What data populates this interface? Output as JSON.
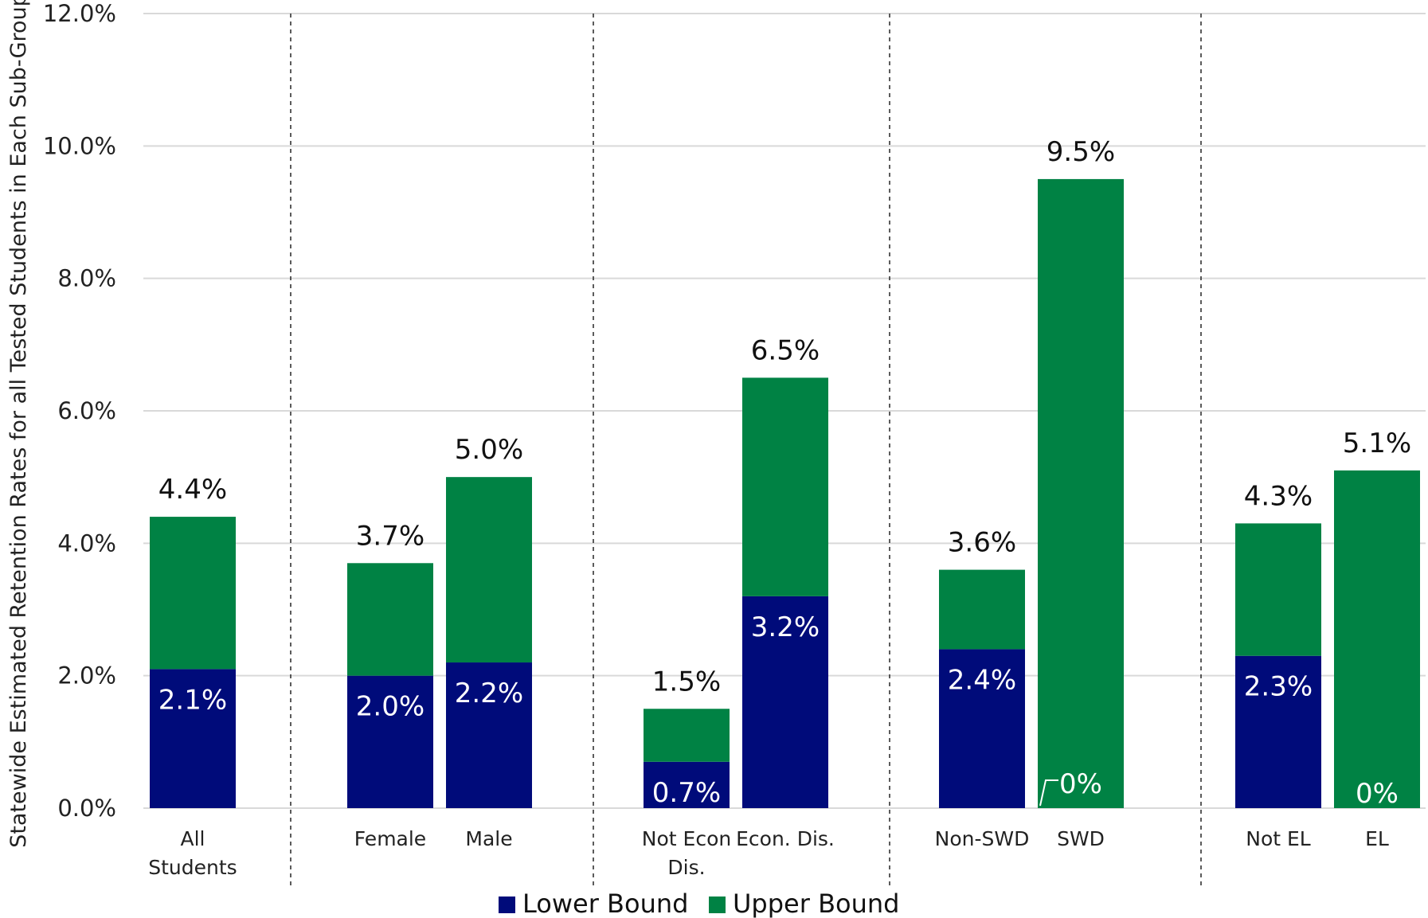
{
  "chart_data": {
    "type": "bar",
    "stacked": true,
    "title": "",
    "xlabel": "",
    "ylabel": "Statewide Estimated Retention Rates for all Tested Students in Each Sub-Group",
    "ylim": [
      0,
      12
    ],
    "yticks": [
      "0.0%",
      "2.0%",
      "4.0%",
      "6.0%",
      "8.0%",
      "10.0%",
      "12.0%"
    ],
    "grid": true,
    "legend_position": "bottom",
    "groups": [
      [
        0
      ],
      [
        1,
        2
      ],
      [
        3,
        4
      ],
      [
        5,
        6
      ],
      [
        7,
        8
      ]
    ],
    "categories": [
      {
        "lines": [
          "All",
          "Students"
        ]
      },
      {
        "lines": [
          "Female"
        ]
      },
      {
        "lines": [
          "Male"
        ]
      },
      {
        "lines": [
          "Not Econ",
          "Dis."
        ]
      },
      {
        "lines": [
          "Econ. Dis."
        ]
      },
      {
        "lines": [
          "Non-SWD"
        ]
      },
      {
        "lines": [
          "SWD"
        ]
      },
      {
        "lines": [
          "Not EL"
        ]
      },
      {
        "lines": [
          "EL"
        ]
      }
    ],
    "series": [
      {
        "name": "Lower Bound",
        "color": "#000B7A",
        "values": [
          2.1,
          2.0,
          2.2,
          0.7,
          3.2,
          2.4,
          0,
          2.3,
          0
        ],
        "labels": [
          "2.1%",
          "2.0%",
          "2.2%",
          "0.7%",
          "3.2%",
          "2.4%",
          "0%",
          "2.3%",
          "0%"
        ]
      },
      {
        "name": "Upper Bound",
        "color": "#008244",
        "values": [
          2.3,
          1.7,
          2.8,
          0.8,
          3.3,
          1.2,
          9.5,
          2.0,
          5.1
        ]
      }
    ],
    "totals": [
      4.4,
      3.7,
      5.0,
      1.5,
      6.5,
      3.6,
      9.5,
      4.3,
      5.1
    ],
    "total_labels": [
      "4.4%",
      "3.7%",
      "5.0%",
      "1.5%",
      "6.5%",
      "3.6%",
      "9.5%",
      "4.3%",
      "5.1%"
    ]
  }
}
